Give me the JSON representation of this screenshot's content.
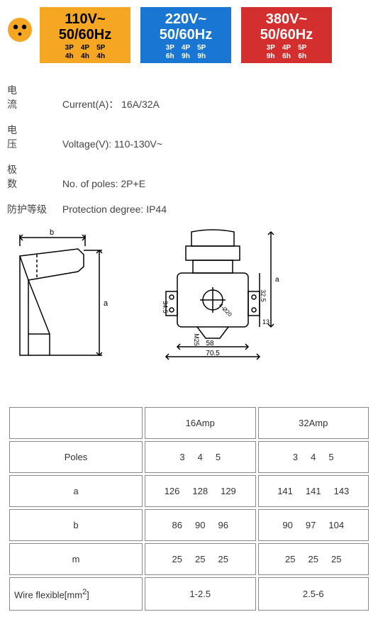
{
  "voltage_badges": {
    "plug_icon_color": "#f5a623",
    "plug_pin_color": "#000000",
    "boxes": [
      {
        "bg": "#f5a623",
        "fg": "#000000",
        "v": "110V~",
        "hz": "50/60Hz",
        "cols": [
          {
            "p": "3P",
            "h": "4h"
          },
          {
            "p": "4P",
            "h": "4h"
          },
          {
            "p": "5P",
            "h": "4h"
          }
        ]
      },
      {
        "bg": "#1976d2",
        "fg": "#ffffff",
        "v": "220V~",
        "hz": "50/60Hz",
        "cols": [
          {
            "p": "3P",
            "h": "6h"
          },
          {
            "p": "4P",
            "h": "9h"
          },
          {
            "p": "5P",
            "h": "9h"
          }
        ]
      },
      {
        "bg": "#d32f2f",
        "fg": "#ffffff",
        "v": "380V~",
        "hz": "50/60Hz",
        "cols": [
          {
            "p": "3P",
            "h": "9h"
          },
          {
            "p": "4P",
            "h": "6h"
          },
          {
            "p": "5P",
            "h": "6h"
          }
        ]
      }
    ]
  },
  "specs": {
    "current": {
      "cn": "电　　流",
      "en": "Current(A)：",
      "val": "16A/32A"
    },
    "voltage": {
      "cn": "电　　压",
      "en": "Voltage(V):",
      "val": "110-130V~"
    },
    "poles": {
      "cn": "极　　数",
      "en": "No. of poles:",
      "val": "2P+E"
    },
    "protection": {
      "cn": "防护等级",
      "en": "Protection degree:",
      "val": "IP44"
    }
  },
  "diagram": {
    "left": {
      "label_b": "b",
      "label_a": "a"
    },
    "right": {
      "a": "a",
      "d325": "32.5",
      "d345": "34.5",
      "d20": "4-Ø20",
      "m25": "M25",
      "d58": "58",
      "d705": "70.5",
      "d13": "13"
    }
  },
  "table": {
    "headers": {
      "c1": "",
      "c2": "16Amp",
      "c3": "32Amp"
    },
    "rows": [
      {
        "label": "Poles",
        "a": [
          "3",
          "4",
          "5"
        ],
        "b": [
          "3",
          "4",
          "5"
        ]
      },
      {
        "label": "a",
        "a": [
          "126",
          "128",
          "129"
        ],
        "b": [
          "141",
          "141",
          "143"
        ]
      },
      {
        "label": "b",
        "a": [
          "86",
          "90",
          "96"
        ],
        "b": [
          "90",
          "97",
          "104"
        ]
      },
      {
        "label": "m",
        "a": [
          "25",
          "25",
          "25"
        ],
        "b": [
          "25",
          "25",
          "25"
        ]
      }
    ],
    "wire": {
      "label_pre": "Wire flexible[mm",
      "label_sup": "2",
      "label_post": "]",
      "a": "1-2.5",
      "b": "2.5-6"
    }
  }
}
